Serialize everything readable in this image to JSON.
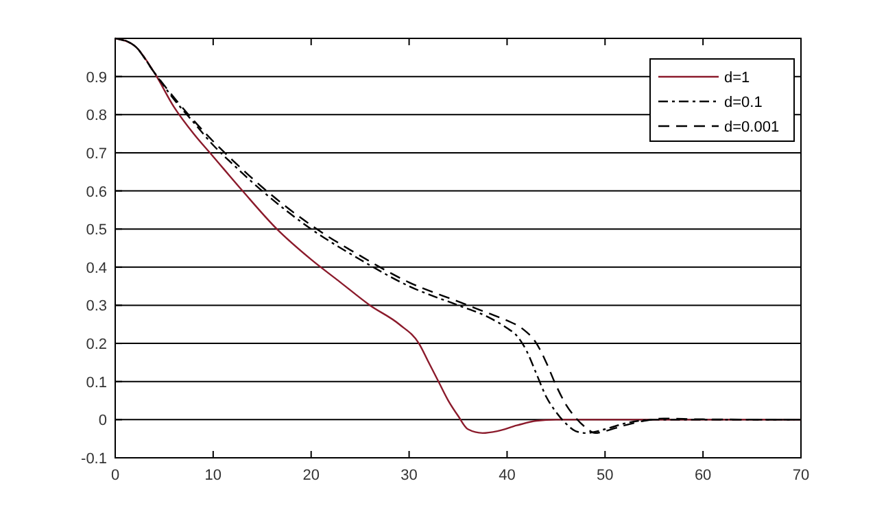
{
  "chart_data": {
    "type": "line",
    "xlim": [
      0,
      70
    ],
    "xticks": [
      0,
      10,
      20,
      30,
      40,
      50,
      60,
      70
    ],
    "ylim": [
      -0.1,
      1
    ],
    "yticks": [
      -0.1,
      0,
      0.1,
      0.2,
      0.3,
      0.4,
      0.5,
      0.6,
      0.7,
      0.8,
      0.9,
      {
        "value": 1,
        "label": null
      }
    ],
    "grid": "y",
    "legend": "top right",
    "series": [
      {
        "name": "d=1",
        "color": "#8b1a2b",
        "line_style": "solid",
        "x": [
          0,
          2,
          4,
          6,
          8,
          10,
          13,
          16.5,
          20,
          23,
          26,
          29,
          31,
          32,
          33,
          34,
          35,
          36,
          37.5,
          39,
          41,
          43,
          45,
          70
        ],
        "values": [
          1,
          0.98,
          0.91,
          0.82,
          0.75,
          0.69,
          0.6,
          0.5,
          0.42,
          0.36,
          0.3,
          0.25,
          0.2,
          0.15,
          0.1,
          0.05,
          0.01,
          -0.025,
          -0.035,
          -0.03,
          -0.015,
          -0.003,
          0,
          0
        ]
      },
      {
        "name": "d=0.1",
        "color": "#000000",
        "line_style": "dashdot",
        "x": [
          0,
          2,
          4,
          6,
          8,
          10,
          12,
          15,
          20,
          25,
          30,
          35,
          38,
          40,
          41,
          42,
          43,
          44,
          45,
          46,
          47,
          48,
          50,
          52,
          55,
          70
        ],
        "values": [
          1,
          0.98,
          0.91,
          0.84,
          0.78,
          0.72,
          0.67,
          0.6,
          0.5,
          0.42,
          0.35,
          0.3,
          0.27,
          0.24,
          0.22,
          0.18,
          0.12,
          0.06,
          0.02,
          -0.01,
          -0.03,
          -0.035,
          -0.025,
          -0.01,
          0,
          0
        ]
      },
      {
        "name": "d=0.001",
        "color": "#000000",
        "line_style": "dashed",
        "x": [
          1,
          2,
          4,
          6,
          8,
          10,
          12,
          15,
          20,
          25,
          30,
          35,
          38,
          40,
          41.5,
          43,
          44,
          45,
          46,
          47,
          48,
          49,
          50,
          52,
          54,
          56,
          60,
          70
        ],
        "values": [
          0.995,
          0.98,
          0.91,
          0.845,
          0.785,
          0.73,
          0.68,
          0.61,
          0.51,
          0.43,
          0.36,
          0.31,
          0.28,
          0.26,
          0.24,
          0.2,
          0.15,
          0.09,
          0.04,
          0.005,
          -0.02,
          -0.035,
          -0.03,
          -0.015,
          -0.003,
          0.003,
          0.001,
          0
        ]
      }
    ]
  }
}
